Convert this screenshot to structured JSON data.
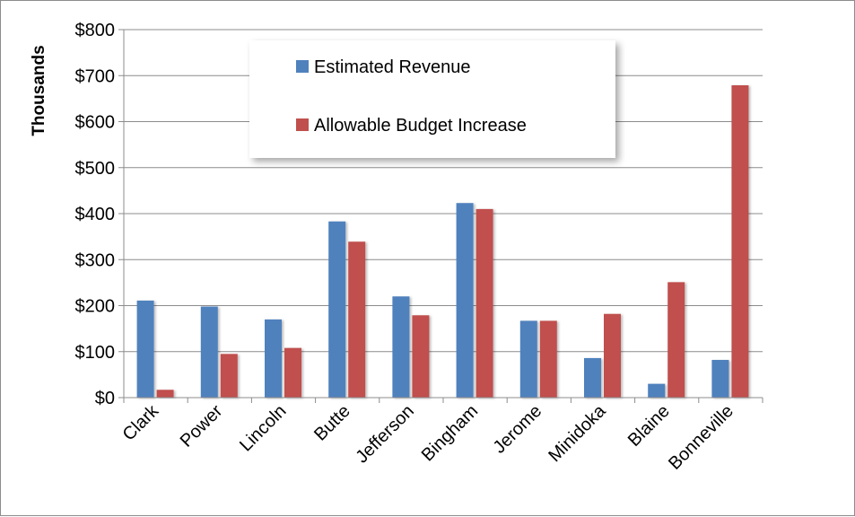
{
  "chart_data": {
    "type": "bar",
    "categories": [
      "Clark",
      "Power",
      "Lincoln",
      "Butte",
      "Jefferson",
      "Bingham",
      "Jerome",
      "Minidoka",
      "Blaine",
      "Bonneville"
    ],
    "series": [
      {
        "name": "Estimated Revenue",
        "color": "#4f81bd",
        "values": [
          211,
          198,
          170,
          383,
          220,
          423,
          167,
          86,
          30,
          82
        ]
      },
      {
        "name": "Allowable Budget Increase",
        "color": "#c0504d",
        "values": [
          17,
          95,
          108,
          339,
          179,
          410,
          167,
          182,
          251,
          679
        ]
      }
    ],
    "title": "",
    "xlabel": "",
    "ylabel": "Thousands",
    "ylim": [
      0,
      800
    ],
    "ytick_values": [
      0,
      100,
      200,
      300,
      400,
      500,
      600,
      700,
      800
    ],
    "ytick_labels": [
      "$0",
      "$100",
      "$200",
      "$300",
      "$400",
      "$500",
      "$600",
      "$700",
      "$800"
    ],
    "grid": true,
    "legend_position": "top-center"
  }
}
